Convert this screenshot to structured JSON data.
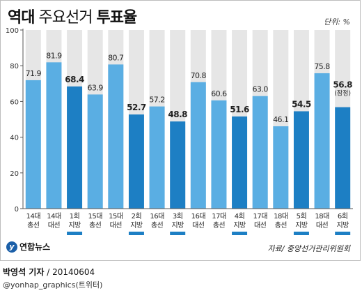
{
  "header": {
    "title_light_1": "역대",
    "title_light_2": "주요선거",
    "title_bold": "투표율",
    "unit": "단위: %"
  },
  "chart_data": {
    "type": "bar",
    "title": "역대 주요선거 투표율",
    "ylim": [
      0,
      100
    ],
    "yticks": [
      0,
      20,
      40,
      60,
      80,
      100
    ],
    "grid": false,
    "categories": [
      {
        "line1": "14대",
        "line2": "총선",
        "local": false
      },
      {
        "line1": "14대",
        "line2": "대선",
        "local": false
      },
      {
        "line1": "1회",
        "line2": "지방",
        "local": true
      },
      {
        "line1": "15대",
        "line2": "총선",
        "local": false
      },
      {
        "line1": "15대",
        "line2": "대선",
        "local": false
      },
      {
        "line1": "2회",
        "line2": "지방",
        "local": true
      },
      {
        "line1": "16대",
        "line2": "총선",
        "local": false
      },
      {
        "line1": "3회",
        "line2": "지방",
        "local": true
      },
      {
        "line1": "16대",
        "line2": "대선",
        "local": false
      },
      {
        "line1": "17대",
        "line2": "총선",
        "local": false
      },
      {
        "line1": "4회",
        "line2": "지방",
        "local": true
      },
      {
        "line1": "17대",
        "line2": "대선",
        "local": false
      },
      {
        "line1": "18대",
        "line2": "총선",
        "local": false
      },
      {
        "line1": "5회",
        "line2": "지방",
        "local": true
      },
      {
        "line1": "18대",
        "line2": "대선",
        "local": false
      },
      {
        "line1": "6회",
        "line2": "지방",
        "local": true
      }
    ],
    "values": [
      71.9,
      81.9,
      68.4,
      63.9,
      80.7,
      52.7,
      57.2,
      48.8,
      70.8,
      60.6,
      51.6,
      63.0,
      46.1,
      54.5,
      75.8,
      56.8
    ],
    "value_labels": [
      "71.9",
      "81.9",
      "68.4",
      "63.9",
      "80.7",
      "52.7",
      "57.2",
      "48.8",
      "70.8",
      "60.6",
      "51.6",
      "63.0",
      "46.1",
      "54.5",
      "75.8",
      "56.8"
    ],
    "last_note": "(잠정)",
    "colors": {
      "regular": "#5aaee3",
      "local": "#1d7fc4",
      "background_column": "#e6e6e6",
      "local_marker": "#1d7fc4"
    }
  },
  "footer": {
    "logo_mark": "y",
    "logo_text": "연합뉴스",
    "source": "자료/ 중앙선거관리위원회",
    "reporter": "박영석 기자",
    "date": " / 20140604",
    "handle": "@yonhap_graphics(트위터)"
  }
}
